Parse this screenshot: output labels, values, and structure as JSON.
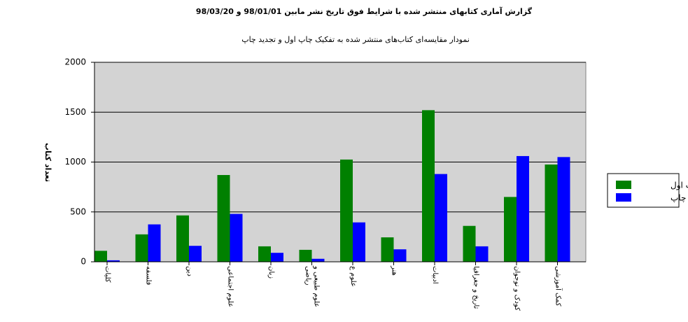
{
  "chart_data": {
    "type": "bar",
    "title": "گزارش آماری کتابهای منتشر شده با شرایط فوق تاریخ نشر مابین 98/01/01 و 98/03/20",
    "subtitle": "نمودار مقایسه‌ای کتاب‌های منتشر شده به تفکیک چاپ اول و تجدید چاپ",
    "y_label": "تعداد کتاب",
    "categories": [
      "کلیات",
      "فلسفه",
      "دین",
      "علوم اجتماعی",
      "زبان",
      "علوم طبیعی و ریاضی",
      "علوم ع",
      "هنر",
      "ادبیات",
      "تاریخ و جغرافیا",
      "کودک و نوجوان",
      "کمک آموزشی"
    ],
    "series": [
      {
        "name": "چاپ اول",
        "color": "#008000",
        "values": [
          110,
          275,
          465,
          870,
          155,
          120,
          1025,
          245,
          1520,
          360,
          650,
          975
        ]
      },
      {
        "name": "تجدید چاپ",
        "color": "#0000ff",
        "values": [
          15,
          375,
          160,
          480,
          90,
          30,
          395,
          125,
          880,
          155,
          1060,
          1050
        ]
      }
    ],
    "ylim": [
      0,
      2000
    ],
    "yticks": [
      0,
      500,
      1000,
      1500,
      2000
    ],
    "grid": true,
    "legend": "right"
  }
}
